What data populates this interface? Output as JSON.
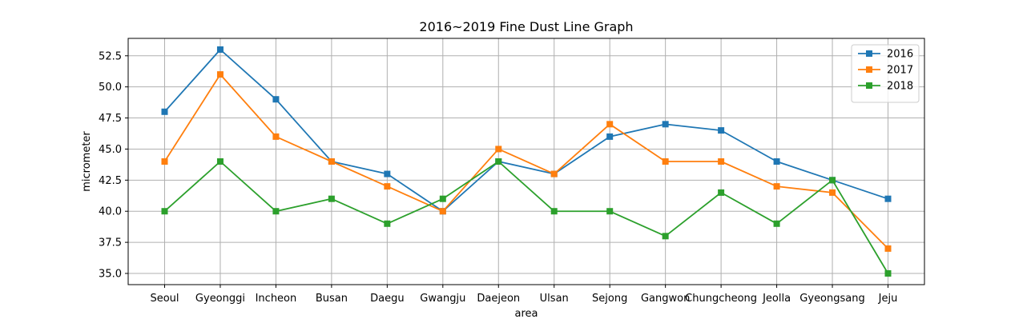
{
  "chart_data": {
    "type": "line",
    "title": "2016~2019 Fine Dust Line Graph",
    "xlabel": "area",
    "ylabel": "micrometer",
    "categories": [
      "Seoul",
      "Gyeonggi",
      "Incheon",
      "Busan",
      "Daegu",
      "Gwangju",
      "Daejeon",
      "Ulsan",
      "Sejong",
      "Gangwon",
      "Chungcheong",
      "Jeolla",
      "Gyeongsang",
      "Jeju"
    ],
    "ylim": [
      34.1,
      53.9
    ],
    "yticks": [
      "35.0",
      "37.5",
      "40.0",
      "42.5",
      "45.0",
      "47.5",
      "50.0",
      "52.5"
    ],
    "grid": true,
    "legend_position": "top-right",
    "marker": "square",
    "series": [
      {
        "name": "2016",
        "color": "#1f77b4",
        "values": [
          48,
          53,
          49,
          44,
          43,
          40,
          44,
          43,
          46,
          47,
          46.5,
          44,
          42.5,
          41
        ]
      },
      {
        "name": "2017",
        "color": "#ff7f0e",
        "values": [
          44,
          51,
          46,
          44,
          42,
          40,
          45,
          43,
          47,
          44,
          44,
          42,
          41.5,
          37
        ]
      },
      {
        "name": "2018",
        "color": "#2ca02c",
        "values": [
          40,
          44,
          40,
          41,
          39,
          41,
          44,
          40,
          40,
          38,
          41.5,
          39,
          42.5,
          35
        ]
      }
    ]
  }
}
